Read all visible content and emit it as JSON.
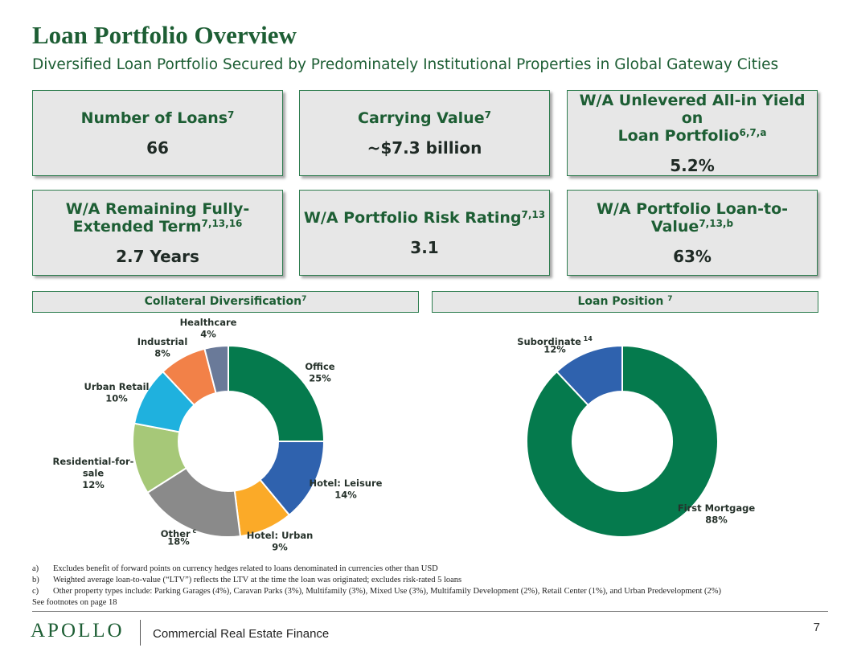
{
  "header": {
    "title": "Loan Portfolio Overview",
    "subtitle": "Diversified Loan Portfolio Secured by Predominately Institutional Properties in Global Gateway Cities"
  },
  "metrics": [
    {
      "label_lines": [
        "Number of Loans"
      ],
      "sup": "7",
      "value": "66"
    },
    {
      "label_lines": [
        "Carrying Value"
      ],
      "sup": "7",
      "value": "~$7.3 billion"
    },
    {
      "label_lines": [
        "W/A Unlevered All-in Yield on",
        "Loan Portfolio"
      ],
      "sup": "6,7,a",
      "value": "5.2%"
    },
    {
      "label_lines": [
        "W/A Remaining Fully-",
        "Extended Term"
      ],
      "sup": "7,13,16",
      "value": "2.7 Years"
    },
    {
      "label_lines": [
        "W/A Portfolio Risk Rating"
      ],
      "sup": "7,13",
      "value": "3.1"
    },
    {
      "label_lines": [
        "W/A Portfolio Loan-to-",
        "Value"
      ],
      "sup": "7,13,b",
      "value": "63%"
    }
  ],
  "sections": {
    "collateral": {
      "label": "Collateral Diversification",
      "sup": "7"
    },
    "position": {
      "label": "Loan Position",
      "sup": "7"
    }
  },
  "chart_data": [
    {
      "type": "pie",
      "title": "Collateral Diversification",
      "categories": [
        "Office",
        "Hotel: Leisure",
        "Hotel: Urban",
        "Other",
        "Residential-for-sale",
        "Urban Retail",
        "Industrial",
        "Healthcare"
      ],
      "label_lines": [
        [
          "Office",
          "25%"
        ],
        [
          "Hotel: Leisure",
          "14%"
        ],
        [
          "Hotel: Urban",
          "9%"
        ],
        [
          "Other",
          "18%"
        ],
        [
          "Residential-for-",
          "sale",
          "12%"
        ],
        [
          "Urban Retail",
          "10%"
        ],
        [
          "Industrial",
          "8%"
        ],
        [
          "Healthcare",
          "4%"
        ]
      ],
      "label_sup": [
        "",
        "",
        "",
        "c",
        "",
        "",
        "",
        ""
      ],
      "values": [
        25,
        14,
        9,
        18,
        12,
        10,
        8,
        4
      ],
      "colors": [
        "#057a4d",
        "#2f62ae",
        "#fbaa28",
        "#8a8a8a",
        "#a6c878",
        "#1fb1de",
        "#f28148",
        "#6a7a99"
      ]
    },
    {
      "type": "pie",
      "title": "Loan Position",
      "categories": [
        "First Mortgage",
        "Subordinate"
      ],
      "label_lines": [
        [
          "First Mortgage",
          "88%"
        ],
        [
          "Subordinate",
          "12%"
        ]
      ],
      "label_sup": [
        "",
        "14"
      ],
      "values": [
        88,
        12
      ],
      "colors": [
        "#057a4d",
        "#2f62ae"
      ]
    }
  ],
  "footnotes": [
    {
      "marker": "a)",
      "text": "Excludes benefit of forward points on currency hedges related to loans denominated in currencies other than USD"
    },
    {
      "marker": "b)",
      "text": "Weighted average loan-to-value (“LTV”) reflects the LTV at the time the loan was originated; excludes risk-rated 5 loans"
    },
    {
      "marker": "c)",
      "text": "Other property types include: Parking Garages (4%), Caravan Parks (3%), Multifamily (3%), Mixed Use (3%), Multifamily Development (2%), Retail Center (1%), and Urban Predevelopment (2%)"
    }
  ],
  "see_footnotes": "See footnotes on page 18",
  "footer": {
    "logo": "APOLLO",
    "brand": "Commercial Real Estate Finance",
    "page": "7"
  }
}
